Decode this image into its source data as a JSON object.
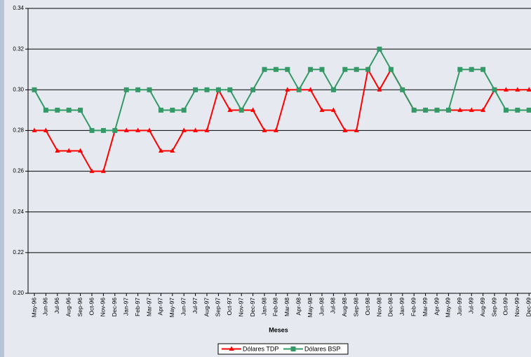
{
  "chart_data": {
    "type": "line",
    "x_label": "Meses",
    "categories": [
      "May-96",
      "Jun-96",
      "Jul-96",
      "Aug-96",
      "Sep-96",
      "Oct-96",
      "Nov-96",
      "Dec-96",
      "Jan-97",
      "Feb-97",
      "Mar-97",
      "Apr-97",
      "May-97",
      "Jun-97",
      "Jul-97",
      "Aug-97",
      "Sep-97",
      "Oct-97",
      "Nov-97",
      "Dec-97",
      "Jan-98",
      "Feb-98",
      "Mar-98",
      "Apr-98",
      "May-98",
      "Jun-98",
      "Jul-98",
      "Aug-98",
      "Sep-98",
      "Oct-98",
      "Nov-98",
      "Dec-98",
      "Jan-99",
      "Feb-99",
      "Mar-99",
      "Apr-99",
      "May-99",
      "Jun-99",
      "Jul-99",
      "Aug-99",
      "Sep-99",
      "Oct-99",
      "Nov-99",
      "Dec-99"
    ],
    "series": [
      {
        "name": "Dólares TDP",
        "color": "#ff0000",
        "marker": "triangle",
        "values": [
          0.28,
          0.28,
          0.27,
          0.27,
          0.27,
          0.26,
          0.26,
          0.28,
          0.28,
          0.28,
          0.28,
          0.27,
          0.27,
          0.28,
          0.28,
          0.28,
          0.3,
          0.29,
          0.29,
          0.29,
          0.28,
          0.28,
          0.3,
          0.3,
          0.3,
          0.29,
          0.29,
          0.28,
          0.28,
          0.31,
          0.3,
          0.31,
          0.3,
          0.29,
          0.29,
          0.29,
          0.29,
          0.29,
          0.29,
          0.29,
          0.3,
          0.3,
          0.3,
          0.3
        ]
      },
      {
        "name": "Dólares BSP",
        "color": "#339966",
        "marker": "square",
        "values": [
          0.3,
          0.29,
          0.29,
          0.29,
          0.29,
          0.28,
          0.28,
          0.28,
          0.3,
          0.3,
          0.3,
          0.29,
          0.29,
          0.29,
          0.3,
          0.3,
          0.3,
          0.3,
          0.29,
          0.3,
          0.31,
          0.31,
          0.31,
          0.3,
          0.31,
          0.31,
          0.3,
          0.31,
          0.31,
          0.31,
          0.32,
          0.31,
          0.3,
          0.29,
          0.29,
          0.29,
          0.29,
          0.31,
          0.31,
          0.31,
          0.3,
          0.29,
          0.29,
          0.29
        ]
      }
    ],
    "ylim": [
      0.2,
      0.34
    ],
    "yticks": [
      {
        "value": 0.2,
        "label": "0.20"
      },
      0.22,
      0.24,
      0.26,
      0.28,
      {
        "value": 0.3,
        "label": "0.30"
      },
      0.32,
      0.34
    ],
    "grid": true,
    "legend": "bottom"
  }
}
